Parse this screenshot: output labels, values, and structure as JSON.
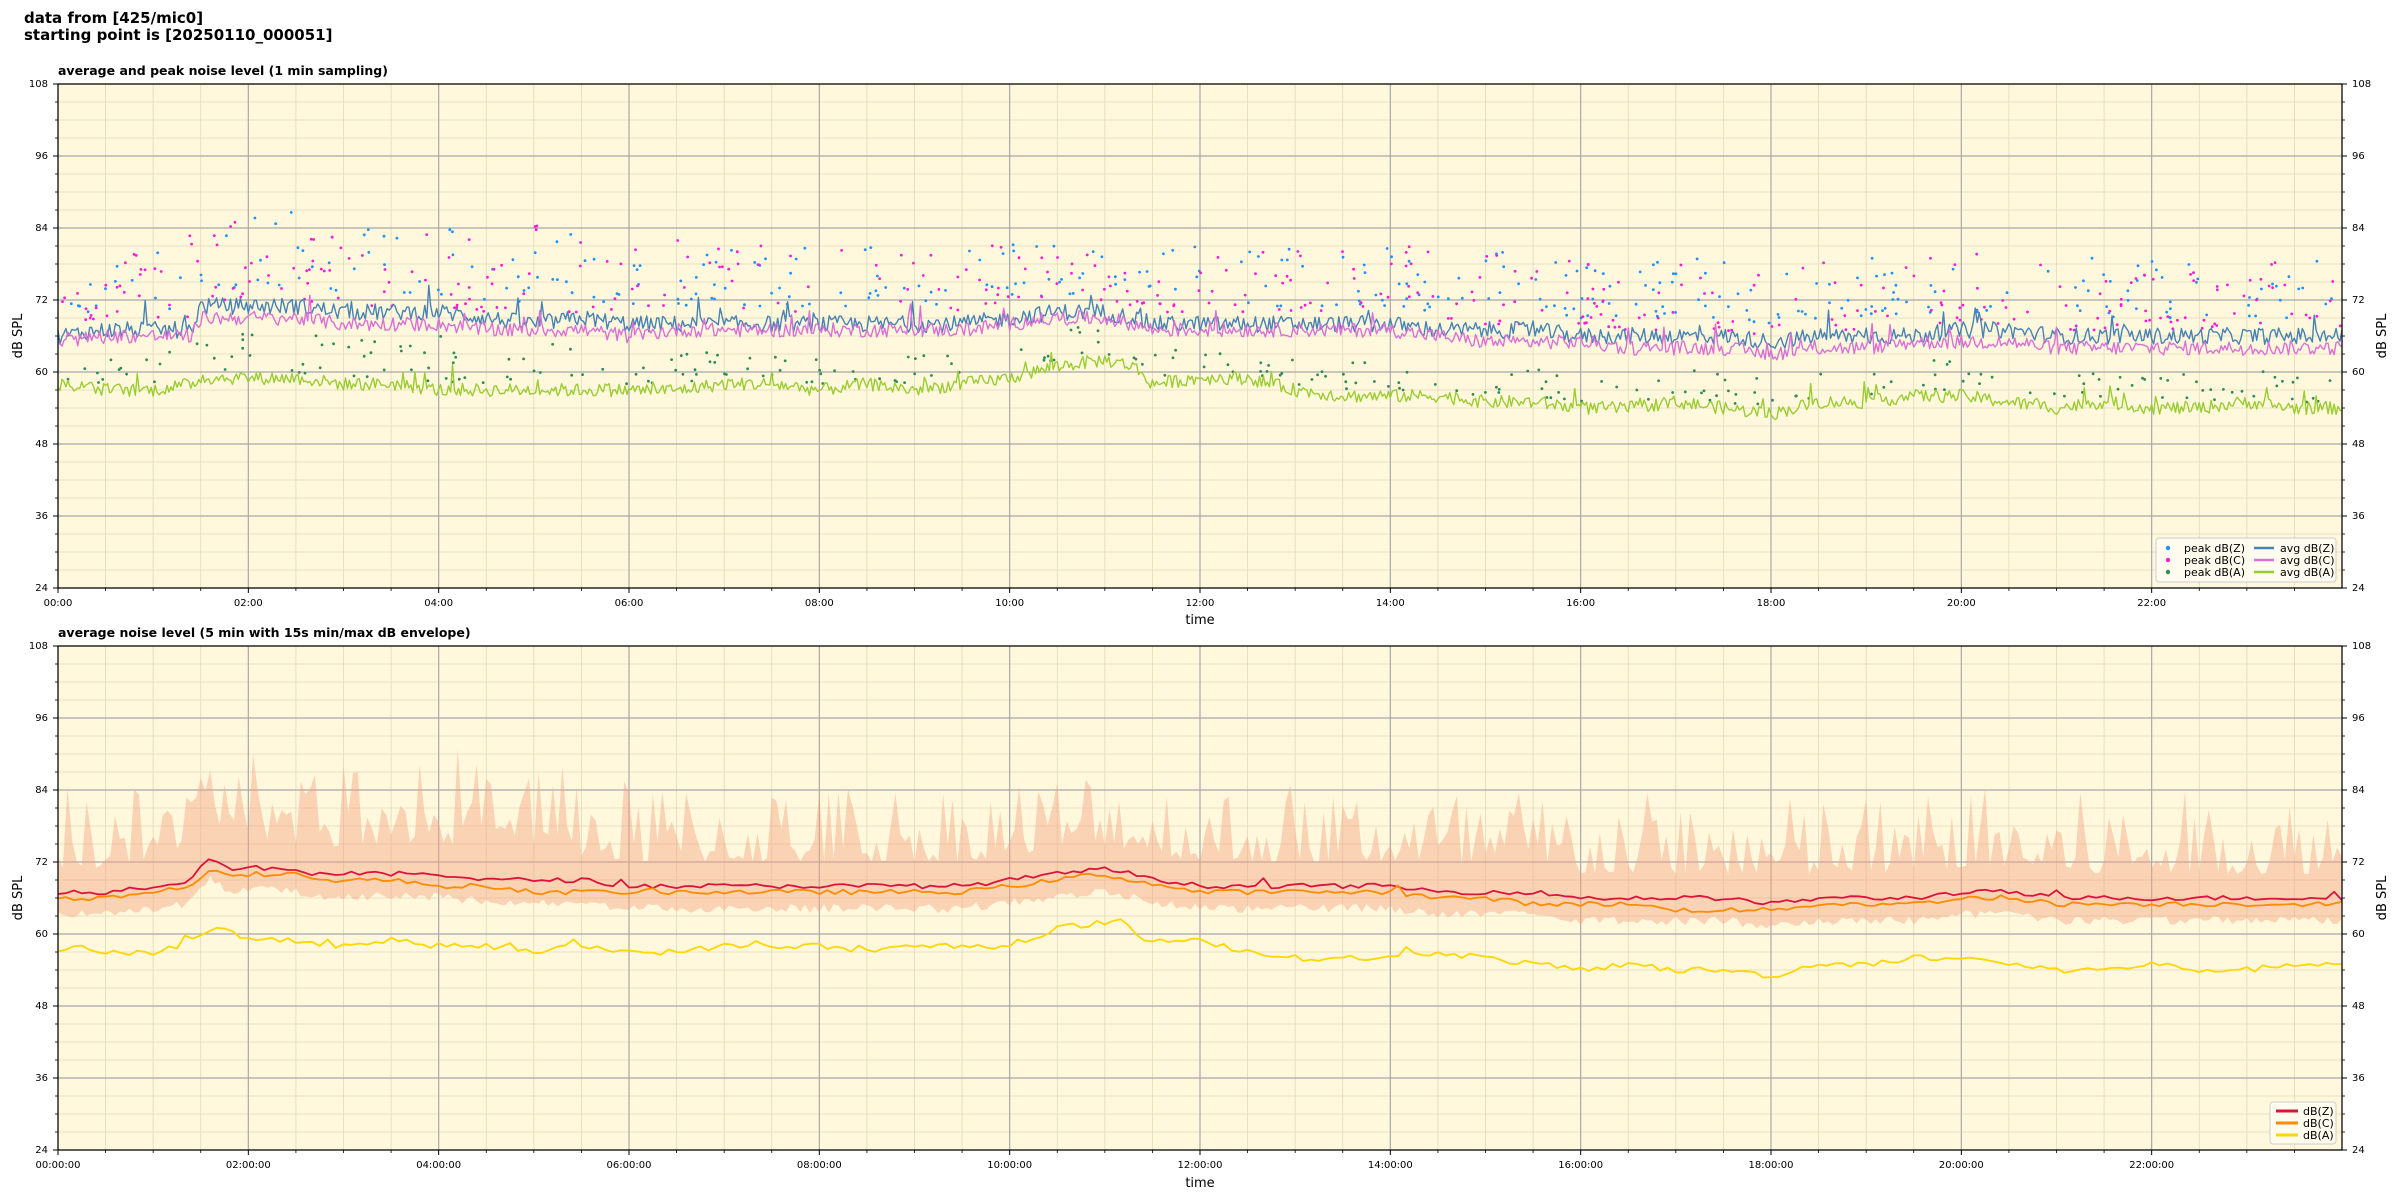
{
  "header": {
    "line1": "data from [425/mic0]",
    "line2": "starting point is [20250110_000051]"
  },
  "colors": {
    "background": "#fff8dc",
    "peak_z": "#1e90ff",
    "peak_c": "#ff1ad9",
    "peak_a": "#2e8b57",
    "avg_z": "#4682b4",
    "avg_c": "#da70d6",
    "avg_a": "#9acd32",
    "db_z": "#dc143c",
    "db_c": "#ff8c00",
    "db_a": "#ffd700",
    "envelope": "#f4a582"
  },
  "chart_data": [
    {
      "type": "line",
      "title": "average and peak noise level (1 min sampling)",
      "xlabel": "time",
      "ylabel": "dB SPL",
      "ylabel_right": "dB SPL",
      "x_range_hours": [
        0,
        24
      ],
      "ylim": [
        24,
        108
      ],
      "yticks": [
        "24",
        "36",
        "48",
        "60",
        "72",
        "84",
        "96",
        "108"
      ],
      "xticks": [
        "00:00",
        "02:00",
        "04:00",
        "06:00",
        "08:00",
        "10:00",
        "12:00",
        "14:00",
        "16:00",
        "18:00",
        "20:00",
        "22:00"
      ],
      "grid": true,
      "legend_position": "lower-right",
      "legend": [
        {
          "label": "peak dB(Z)",
          "kind": "dots",
          "color_key": "peak_z"
        },
        {
          "label": "peak dB(C)",
          "kind": "dots",
          "color_key": "peak_c"
        },
        {
          "label": "peak dB(A)",
          "kind": "dots",
          "color_key": "peak_a"
        },
        {
          "label": "avg dB(Z)",
          "kind": "line",
          "color_key": "avg_z"
        },
        {
          "label": "avg dB(C)",
          "kind": "line",
          "color_key": "avg_c"
        },
        {
          "label": "avg dB(A)",
          "kind": "line",
          "color_key": "avg_a"
        }
      ],
      "series": [
        {
          "key": "avg_z",
          "kind": "line",
          "color_key": "avg_z",
          "noise": 1.4,
          "x": [
            0,
            0.5,
            1,
            1.4,
            1.5,
            2,
            2.5,
            3,
            3.5,
            4,
            4.5,
            5,
            5.5,
            6,
            6.5,
            7,
            7.5,
            8,
            8.5,
            9,
            9.5,
            10,
            10.5,
            11,
            11.3,
            11.5,
            12,
            12.5,
            13,
            13.5,
            14,
            14.5,
            15,
            15.5,
            16,
            16.5,
            17,
            17.5,
            18,
            18.5,
            19,
            19.5,
            20,
            20.5,
            21,
            21.5,
            22,
            22.5,
            23,
            23.5,
            24
          ],
          "y": [
            66,
            67,
            67,
            67,
            71,
            71,
            71,
            70,
            70,
            70,
            69,
            68,
            69,
            68,
            68,
            68,
            68,
            68,
            68,
            68,
            68,
            69,
            70,
            70,
            69,
            68,
            68,
            68,
            68,
            68,
            68,
            67,
            67,
            67,
            66,
            66,
            66,
            66,
            65,
            66,
            66,
            66,
            67,
            67,
            66,
            66,
            66,
            66,
            66,
            66,
            66
          ]
        },
        {
          "key": "avg_c",
          "kind": "line",
          "color_key": "avg_c",
          "noise": 1.2,
          "x": [
            0,
            0.5,
            1,
            1.4,
            1.5,
            2,
            2.5,
            3,
            3.5,
            4,
            4.5,
            5,
            5.5,
            6,
            6.5,
            7,
            7.5,
            8,
            8.5,
            9,
            9.5,
            10,
            10.5,
            11,
            11.3,
            11.5,
            12,
            12.5,
            13,
            13.5,
            14,
            14.5,
            15,
            15.5,
            16,
            16.5,
            17,
            17.5,
            18,
            18.5,
            19,
            19.5,
            20,
            20.5,
            21,
            21.5,
            22,
            22.5,
            23,
            23.5,
            24
          ],
          "y": [
            65,
            66,
            66,
            66,
            69,
            69,
            69,
            68,
            68,
            68,
            67,
            67,
            67,
            66,
            67,
            67,
            67,
            67,
            67,
            67,
            67,
            68,
            69,
            69,
            68,
            67,
            67,
            67,
            67,
            67,
            67,
            66,
            65,
            65,
            65,
            64,
            64,
            64,
            63,
            64,
            64,
            65,
            65,
            65,
            64,
            64,
            64,
            64,
            64,
            64,
            64
          ]
        },
        {
          "key": "avg_a",
          "kind": "line",
          "color_key": "avg_a",
          "noise": 1.1,
          "x": [
            0,
            0.5,
            1,
            1.4,
            1.5,
            2,
            2.5,
            3,
            3.5,
            4,
            4.5,
            5,
            5.5,
            6,
            6.5,
            7,
            7.5,
            8,
            8.5,
            9,
            9.5,
            10,
            10.5,
            11,
            11.3,
            11.5,
            12,
            12.5,
            13,
            13.5,
            14,
            14.5,
            15,
            15.5,
            16,
            16.5,
            17,
            17.5,
            18,
            18.5,
            19,
            19.5,
            20,
            20.5,
            21,
            21.5,
            22,
            22.5,
            23,
            23.5,
            24
          ],
          "y": [
            58,
            57,
            57,
            58,
            59,
            59,
            59,
            58,
            58,
            57,
            57,
            57,
            57,
            57,
            57,
            58,
            58,
            57,
            58,
            57,
            58,
            59,
            61,
            62,
            61,
            58,
            59,
            59,
            57,
            56,
            56,
            56,
            55,
            55,
            54,
            54,
            55,
            54,
            53,
            55,
            55,
            56,
            56,
            55,
            54,
            55,
            54,
            54,
            55,
            54,
            54
          ]
        },
        {
          "key": "peak_z",
          "kind": "dots",
          "color_key": "peak_z",
          "base": "avg_z",
          "offset": [
            3,
            13
          ],
          "count": 340
        },
        {
          "key": "peak_c",
          "kind": "dots",
          "color_key": "peak_c",
          "base": "avg_c",
          "offset": [
            3,
            15
          ],
          "count": 380
        },
        {
          "key": "peak_a",
          "kind": "dots",
          "color_key": "peak_a",
          "base": "avg_a",
          "offset": [
            1,
            6
          ],
          "count": 260
        }
      ]
    },
    {
      "type": "line",
      "title": "average noise level (5 min with 15s min/max dB envelope)",
      "xlabel": "time",
      "ylabel": "dB SPL",
      "ylabel_right": "dB SPL",
      "x_range_hours": [
        0,
        24
      ],
      "ylim": [
        24,
        108
      ],
      "yticks": [
        "24",
        "36",
        "48",
        "60",
        "72",
        "84",
        "96",
        "108"
      ],
      "xticks": [
        "00:00:00",
        "02:00:00",
        "04:00:00",
        "06:00:00",
        "08:00:00",
        "10:00:00",
        "12:00:00",
        "14:00:00",
        "16:00:00",
        "18:00:00",
        "20:00:00",
        "22:00:00"
      ],
      "grid": true,
      "legend_position": "lower-right",
      "legend": [
        {
          "label": "dB(Z)",
          "kind": "line",
          "color_key": "db_z"
        },
        {
          "label": "dB(C)",
          "kind": "line",
          "color_key": "db_c"
        },
        {
          "label": "dB(A)",
          "kind": "line",
          "color_key": "db_a"
        }
      ],
      "series": [
        {
          "key": "envelope",
          "kind": "band",
          "color_key": "envelope",
          "base": "db_z",
          "lower_offset": 3,
          "upper_offset": [
            4,
            18
          ],
          "upper_max": 91,
          "bins": 480
        },
        {
          "key": "db_z",
          "kind": "line",
          "color_key": "db_z",
          "noise": 0.4,
          "x": [
            0,
            0.5,
            1,
            1.4,
            1.6,
            1.8,
            2,
            2.4,
            2.7,
            3,
            3.5,
            4,
            4.5,
            5,
            5.5,
            6,
            6.5,
            7,
            7.5,
            8,
            8.5,
            9,
            9.5,
            10,
            10.5,
            10.9,
            11.3,
            11.6,
            12,
            12.5,
            13,
            13.5,
            14,
            14.5,
            15,
            15.5,
            16,
            16.5,
            17,
            17.5,
            18,
            18.5,
            19,
            19.5,
            20,
            20.5,
            21,
            21.5,
            22,
            22.5,
            23,
            23.5,
            24
          ],
          "y": [
            67,
            67,
            68,
            69,
            73,
            71,
            71,
            71,
            70,
            70,
            70,
            70,
            69,
            69,
            69,
            68,
            68,
            68,
            68,
            68,
            68,
            68,
            68,
            69,
            70,
            71,
            70,
            69,
            68,
            68,
            68,
            68,
            68,
            67,
            67,
            67,
            66,
            66,
            66,
            66,
            65,
            66,
            66,
            66,
            67,
            67,
            66,
            66,
            66,
            66,
            66,
            66,
            66
          ]
        },
        {
          "key": "db_c",
          "kind": "line",
          "color_key": "db_c",
          "noise": 0.4,
          "x": [
            0,
            0.5,
            1,
            1.4,
            1.6,
            1.8,
            2,
            2.4,
            2.7,
            3,
            3.5,
            4,
            4.5,
            5,
            5.5,
            6,
            6.5,
            7,
            7.5,
            8,
            8.5,
            9,
            9.5,
            10,
            10.5,
            10.9,
            11.3,
            11.6,
            12,
            12.5,
            13,
            13.5,
            14,
            14.5,
            15,
            15.5,
            16,
            16.5,
            17,
            17.5,
            18,
            18.5,
            19,
            19.5,
            20,
            20.5,
            21,
            21.5,
            22,
            22.5,
            23,
            23.5,
            24
          ],
          "y": [
            66,
            66,
            67,
            68,
            71,
            70,
            70,
            70,
            69,
            69,
            69,
            68,
            68,
            67,
            67,
            67,
            67,
            67,
            67,
            67,
            67,
            67,
            67,
            68,
            69,
            70,
            69,
            68,
            67,
            67,
            67,
            67,
            67,
            66,
            66,
            65,
            65,
            65,
            64,
            64,
            64,
            65,
            65,
            65,
            66,
            66,
            65,
            65,
            65,
            65,
            65,
            65,
            65
          ]
        },
        {
          "key": "db_a",
          "kind": "line",
          "color_key": "db_a",
          "noise": 0.5,
          "x": [
            0,
            0.3,
            0.5,
            1,
            1.3,
            1.7,
            2,
            2.5,
            3,
            3.5,
            4,
            4.5,
            5,
            5.5,
            6,
            6.5,
            7,
            7.5,
            8,
            8.5,
            9,
            9.5,
            10,
            10.3,
            10.5,
            11,
            11.2,
            11.4,
            11.6,
            12,
            12.5,
            13,
            13.5,
            14,
            14.5,
            15,
            15.5,
            16,
            16.5,
            17,
            17.5,
            18,
            18.5,
            19,
            19.5,
            20,
            20.5,
            21,
            21.5,
            22,
            22.5,
            23,
            23.5,
            24
          ],
          "y": [
            57,
            58,
            57,
            57,
            58,
            61,
            59,
            59,
            58,
            59,
            58,
            58,
            57,
            58,
            57,
            57,
            58,
            58,
            58,
            57,
            58,
            58,
            58,
            59,
            61,
            62,
            62,
            59,
            59,
            59,
            57,
            56,
            56,
            56,
            57,
            56,
            55,
            54,
            55,
            54,
            54,
            53,
            55,
            55,
            56,
            56,
            55,
            54,
            54,
            55,
            54,
            54,
            55,
            55
          ]
        }
      ]
    }
  ]
}
